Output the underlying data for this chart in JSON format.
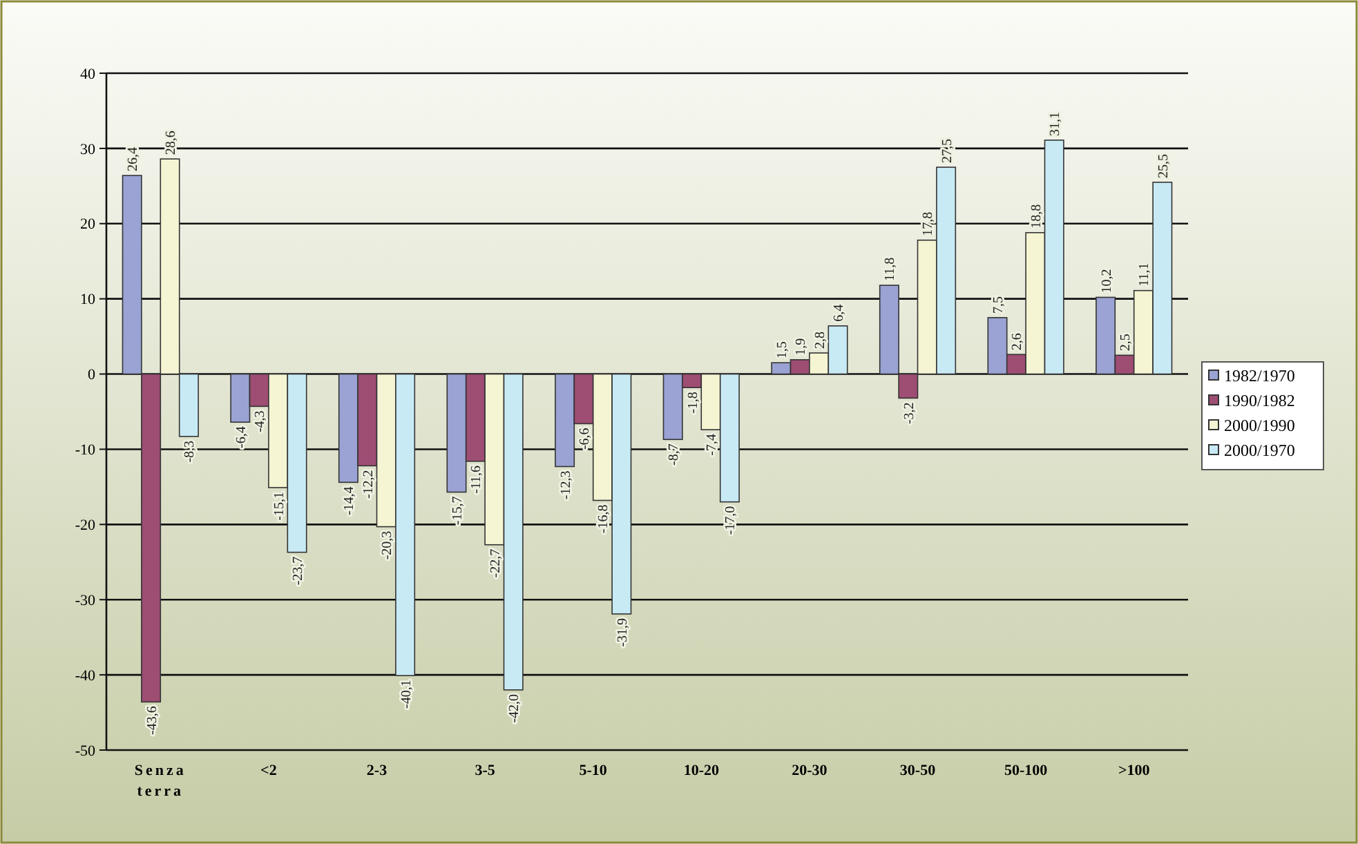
{
  "chart_data": {
    "type": "bar",
    "categories": [
      "Senza terra",
      "<2",
      "2-3",
      "3-5",
      "5-10",
      "10-20",
      "20-30",
      "30-50",
      "50-100",
      ">100"
    ],
    "series": [
      {
        "name": "1982/1970",
        "color": "#9aa3d3",
        "values": [
          26.4,
          -6.4,
          -14.4,
          -15.7,
          -12.3,
          -8.7,
          1.5,
          11.8,
          7.5,
          10.2
        ],
        "value_labels": [
          "26,4",
          "-6,4",
          "-14,4",
          "-15,7",
          "-12,3",
          "-8,7",
          "1,5",
          "11,8",
          "7,5",
          "10,2"
        ]
      },
      {
        "name": "1990/1982",
        "color": "#9e4d73",
        "values": [
          -43.6,
          -4.3,
          -12.2,
          -11.6,
          -6.6,
          -1.8,
          1.9,
          -3.2,
          2.6,
          2.5
        ],
        "value_labels": [
          "-43,6",
          "-4,3",
          "-12,2",
          "-11,6",
          "-6,6",
          "-1,8",
          "1,9",
          "-3,2",
          "2,6",
          "2,5"
        ]
      },
      {
        "name": "2000/1990",
        "color": "#f5f5d3",
        "values": [
          28.6,
          -15.1,
          -20.3,
          -22.7,
          -16.8,
          -7.4,
          2.8,
          17.8,
          18.8,
          11.1
        ],
        "value_labels": [
          "28,6",
          "-15,1",
          "-20,3",
          "-22,7",
          "-16,8",
          "-7,4",
          "2,8",
          "17,8",
          "18,8",
          "11,1"
        ]
      },
      {
        "name": "2000/1970",
        "color": "#c8eaf5",
        "values": [
          -8.3,
          -23.7,
          -40.1,
          -42.0,
          -31.9,
          -17.0,
          6.4,
          27.5,
          31.1,
          25.5
        ],
        "value_labels": [
          "-8,3",
          "-23,7",
          "-40,1",
          "-42,0",
          "-31,9",
          "-17,0",
          "6,4",
          "27,5",
          "31,1",
          "25,5"
        ]
      }
    ],
    "ylim": [
      -50,
      40
    ],
    "yticks": [
      -50,
      -40,
      -30,
      -20,
      -10,
      0,
      10,
      20,
      30,
      40
    ],
    "grid": "y",
    "legend": "right"
  }
}
